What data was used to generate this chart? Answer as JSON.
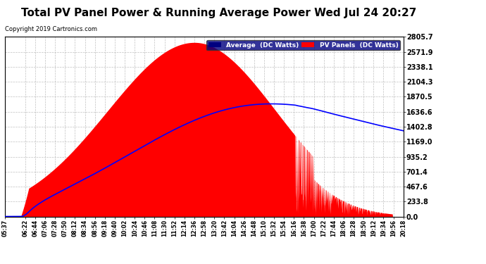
{
  "title": "Total PV Panel Power & Running Average Power Wed Jul 24 20:27",
  "copyright": "Copyright 2019 Cartronics.com",
  "legend_avg": "Average  (DC Watts)",
  "legend_pv": "PV Panels  (DC Watts)",
  "ymax": 2805.7,
  "yticks": [
    0.0,
    233.8,
    467.6,
    701.4,
    935.2,
    1169.0,
    1402.8,
    1636.6,
    1870.5,
    2104.3,
    2338.1,
    2571.9,
    2805.7
  ],
  "background_color": "#ffffff",
  "plot_bg_color": "#ffffff",
  "pv_color": "#ff0000",
  "avg_color": "#0000ff",
  "grid_color": "#b0b0b0",
  "title_fontsize": 11,
  "peak_value": 2720,
  "peak_hour": 12.6,
  "avg_peak_value": 1760,
  "avg_peak_hour": 15.5
}
